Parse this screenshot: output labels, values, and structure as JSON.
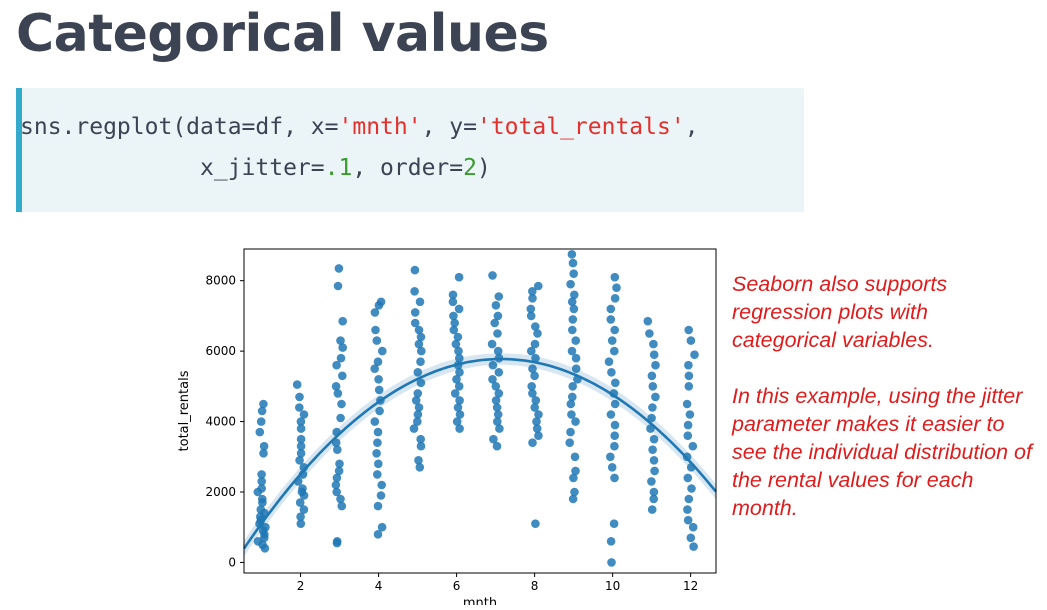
{
  "slide": {
    "title": "Categorical values"
  },
  "code": {
    "line1": {
      "prefix": "sns.regplot(data=df, x=",
      "x_str": "'mnth'",
      "mid": ", y=",
      "y_str": "'total_rentals'",
      "suffix": ","
    },
    "line2": {
      "prefix": "x_jitter=",
      "jitter_num": ".1",
      "mid": ", order=",
      "order_num": "2",
      "suffix": ")"
    }
  },
  "caption": {
    "p1": "Seaborn also supports regression plots with categorical variables.",
    "p2": "In this example, using the jitter parameter makes it easier to see the individual distribution of the rental values for each month."
  },
  "colors": {
    "point": "#1f77b4",
    "fit_line": "#1f77b4",
    "caption": "#e01b1b",
    "code_string": "#e2312d",
    "code_number": "#3a9b2e",
    "code_accent": "#33aacc"
  },
  "chart_data": {
    "type": "scatter",
    "xlabel": "mnth",
    "ylabel": "total_rentals",
    "xlim": [
      0.55,
      12.65
    ],
    "ylim": [
      -300,
      8900
    ],
    "xticks": [
      2,
      4,
      6,
      8,
      10,
      12
    ],
    "yticks": [
      0,
      2000,
      4000,
      6000,
      8000
    ],
    "grid": false,
    "regression": {
      "order": 2,
      "coef": [
        -124,
        1770,
        -540
      ]
    },
    "points": [
      [
        1,
        4500
      ],
      [
        1,
        4300
      ],
      [
        1,
        4000
      ],
      [
        1,
        3700
      ],
      [
        1,
        3300
      ],
      [
        1,
        3100
      ],
      [
        1,
        2500
      ],
      [
        1,
        2300
      ],
      [
        1,
        2100
      ],
      [
        1,
        2000
      ],
      [
        1,
        1800
      ],
      [
        1,
        1700
      ],
      [
        1,
        1500
      ],
      [
        1,
        1400
      ],
      [
        1,
        1300
      ],
      [
        1,
        1200
      ],
      [
        1,
        1100
      ],
      [
        1,
        1000
      ],
      [
        1,
        900
      ],
      [
        1,
        800
      ],
      [
        1,
        700
      ],
      [
        1,
        600
      ],
      [
        1,
        500
      ],
      [
        1,
        400
      ],
      [
        2,
        5050
      ],
      [
        2,
        4700
      ],
      [
        2,
        4400
      ],
      [
        2,
        4200
      ],
      [
        2,
        4000
      ],
      [
        2,
        3800
      ],
      [
        2,
        3500
      ],
      [
        2,
        3300
      ],
      [
        2,
        3100
      ],
      [
        2,
        2900
      ],
      [
        2,
        2700
      ],
      [
        2,
        2500
      ],
      [
        2,
        2300
      ],
      [
        2,
        2100
      ],
      [
        2,
        2000
      ],
      [
        2,
        1900
      ],
      [
        2,
        1700
      ],
      [
        2,
        1500
      ],
      [
        2,
        1300
      ],
      [
        2,
        1100
      ],
      [
        3,
        8350
      ],
      [
        3,
        7850
      ],
      [
        3,
        6850
      ],
      [
        3,
        6300
      ],
      [
        3,
        6100
      ],
      [
        3,
        5800
      ],
      [
        3,
        5600
      ],
      [
        3,
        5300
      ],
      [
        3,
        5000
      ],
      [
        3,
        4800
      ],
      [
        3,
        4500
      ],
      [
        3,
        4100
      ],
      [
        3,
        3700
      ],
      [
        3,
        3400
      ],
      [
        3,
        3200
      ],
      [
        3,
        2800
      ],
      [
        3,
        2600
      ],
      [
        3,
        2400
      ],
      [
        3,
        2200
      ],
      [
        3,
        2000
      ],
      [
        3,
        1800
      ],
      [
        3,
        1600
      ],
      [
        3,
        600
      ],
      [
        3,
        550
      ],
      [
        4,
        7400
      ],
      [
        4,
        7300
      ],
      [
        4,
        7100
      ],
      [
        4,
        6600
      ],
      [
        4,
        6300
      ],
      [
        4,
        6000
      ],
      [
        4,
        5700
      ],
      [
        4,
        5500
      ],
      [
        4,
        5200
      ],
      [
        4,
        4900
      ],
      [
        4,
        4600
      ],
      [
        4,
        4300
      ],
      [
        4,
        4000
      ],
      [
        4,
        3700
      ],
      [
        4,
        3400
      ],
      [
        4,
        3100
      ],
      [
        4,
        2800
      ],
      [
        4,
        2500
      ],
      [
        4,
        2200
      ],
      [
        4,
        1900
      ],
      [
        4,
        1600
      ],
      [
        4,
        1000
      ],
      [
        4,
        800
      ],
      [
        5,
        8300
      ],
      [
        5,
        7700
      ],
      [
        5,
        7400
      ],
      [
        5,
        7100
      ],
      [
        5,
        6800
      ],
      [
        5,
        6600
      ],
      [
        5,
        6400
      ],
      [
        5,
        6200
      ],
      [
        5,
        6000
      ],
      [
        5,
        5700
      ],
      [
        5,
        5400
      ],
      [
        5,
        5100
      ],
      [
        5,
        4800
      ],
      [
        5,
        4600
      ],
      [
        5,
        4400
      ],
      [
        5,
        4200
      ],
      [
        5,
        4000
      ],
      [
        5,
        3800
      ],
      [
        5,
        3500
      ],
      [
        5,
        3300
      ],
      [
        5,
        2900
      ],
      [
        5,
        2700
      ],
      [
        6,
        8100
      ],
      [
        6,
        7600
      ],
      [
        6,
        7400
      ],
      [
        6,
        7200
      ],
      [
        6,
        7000
      ],
      [
        6,
        6800
      ],
      [
        6,
        6600
      ],
      [
        6,
        6400
      ],
      [
        6,
        6200
      ],
      [
        6,
        6000
      ],
      [
        6,
        5800
      ],
      [
        6,
        5600
      ],
      [
        6,
        5400
      ],
      [
        6,
        5200
      ],
      [
        6,
        5000
      ],
      [
        6,
        4800
      ],
      [
        6,
        4600
      ],
      [
        6,
        4400
      ],
      [
        6,
        4200
      ],
      [
        6,
        4000
      ],
      [
        6,
        3800
      ],
      [
        7,
        8150
      ],
      [
        7,
        7550
      ],
      [
        7,
        7300
      ],
      [
        7,
        7000
      ],
      [
        7,
        6800
      ],
      [
        7,
        6500
      ],
      [
        7,
        6200
      ],
      [
        7,
        6000
      ],
      [
        7,
        5800
      ],
      [
        7,
        5600
      ],
      [
        7,
        5400
      ],
      [
        7,
        5200
      ],
      [
        7,
        5000
      ],
      [
        7,
        4800
      ],
      [
        7,
        4600
      ],
      [
        7,
        4400
      ],
      [
        7,
        4200
      ],
      [
        7,
        4000
      ],
      [
        7,
        3800
      ],
      [
        7,
        3500
      ],
      [
        7,
        3300
      ],
      [
        8,
        7850
      ],
      [
        8,
        7700
      ],
      [
        8,
        7500
      ],
      [
        8,
        7200
      ],
      [
        8,
        7000
      ],
      [
        8,
        6700
      ],
      [
        8,
        6500
      ],
      [
        8,
        6200
      ],
      [
        8,
        6000
      ],
      [
        8,
        5800
      ],
      [
        8,
        5500
      ],
      [
        8,
        5300
      ],
      [
        8,
        5000
      ],
      [
        8,
        4800
      ],
      [
        8,
        4600
      ],
      [
        8,
        4400
      ],
      [
        8,
        4200
      ],
      [
        8,
        4000
      ],
      [
        8,
        3800
      ],
      [
        8,
        3600
      ],
      [
        8,
        3400
      ],
      [
        8,
        1100
      ],
      [
        9,
        8750
      ],
      [
        9,
        8500
      ],
      [
        9,
        8200
      ],
      [
        9,
        7900
      ],
      [
        9,
        7600
      ],
      [
        9,
        7400
      ],
      [
        9,
        7200
      ],
      [
        9,
        6900
      ],
      [
        9,
        6600
      ],
      [
        9,
        6300
      ],
      [
        9,
        6000
      ],
      [
        9,
        5800
      ],
      [
        9,
        5500
      ],
      [
        9,
        5200
      ],
      [
        9,
        5000
      ],
      [
        9,
        4700
      ],
      [
        9,
        4500
      ],
      [
        9,
        4200
      ],
      [
        9,
        4000
      ],
      [
        9,
        3700
      ],
      [
        9,
        3400
      ],
      [
        9,
        3000
      ],
      [
        9,
        2600
      ],
      [
        9,
        2400
      ],
      [
        9,
        2000
      ],
      [
        9,
        1800
      ],
      [
        10,
        8100
      ],
      [
        10,
        7800
      ],
      [
        10,
        7500
      ],
      [
        10,
        7200
      ],
      [
        10,
        6900
      ],
      [
        10,
        6600
      ],
      [
        10,
        6300
      ],
      [
        10,
        6000
      ],
      [
        10,
        5700
      ],
      [
        10,
        5400
      ],
      [
        10,
        5100
      ],
      [
        10,
        4800
      ],
      [
        10,
        4500
      ],
      [
        10,
        4200
      ],
      [
        10,
        3900
      ],
      [
        10,
        3600
      ],
      [
        10,
        3300
      ],
      [
        10,
        3000
      ],
      [
        10,
        2700
      ],
      [
        10,
        2400
      ],
      [
        10,
        1100
      ],
      [
        10,
        600
      ],
      [
        10,
        0
      ],
      [
        11,
        6850
      ],
      [
        11,
        6500
      ],
      [
        11,
        6200
      ],
      [
        11,
        5900
      ],
      [
        11,
        5600
      ],
      [
        11,
        5300
      ],
      [
        11,
        5000
      ],
      [
        11,
        4700
      ],
      [
        11,
        4400
      ],
      [
        11,
        4100
      ],
      [
        11,
        3800
      ],
      [
        11,
        3500
      ],
      [
        11,
        3200
      ],
      [
        11,
        2900
      ],
      [
        11,
        2600
      ],
      [
        11,
        2300
      ],
      [
        11,
        2000
      ],
      [
        11,
        1800
      ],
      [
        11,
        1500
      ],
      [
        12,
        6600
      ],
      [
        12,
        6300
      ],
      [
        12,
        5900
      ],
      [
        12,
        5600
      ],
      [
        12,
        5300
      ],
      [
        12,
        5000
      ],
      [
        12,
        4500
      ],
      [
        12,
        4200
      ],
      [
        12,
        3900
      ],
      [
        12,
        3600
      ],
      [
        12,
        3300
      ],
      [
        12,
        3000
      ],
      [
        12,
        2700
      ],
      [
        12,
        2400
      ],
      [
        12,
        2100
      ],
      [
        12,
        1800
      ],
      [
        12,
        1500
      ],
      [
        12,
        1200
      ],
      [
        12,
        1000
      ],
      [
        12,
        700
      ],
      [
        12,
        450
      ]
    ]
  }
}
